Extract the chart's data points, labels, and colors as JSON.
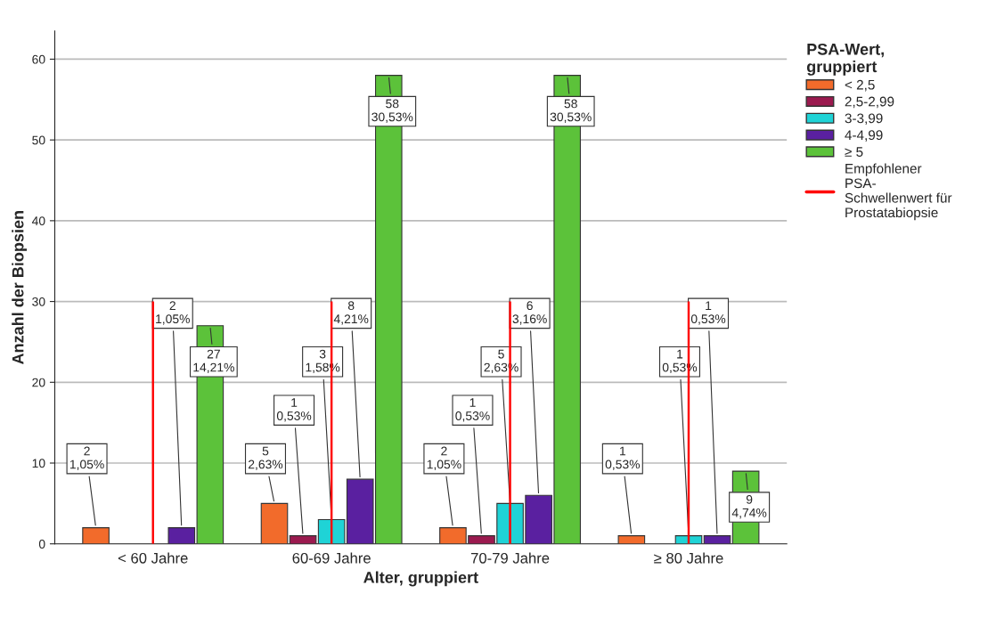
{
  "chart_data": {
    "type": "bar",
    "xlabel": "Alter, gruppiert",
    "ylabel": "Anzahl der Biopsien",
    "legend_title": "PSA-Wert,\ngruppiert",
    "categories": [
      "< 60 Jahre",
      "60-69 Jahre",
      "70-79 Jahre",
      "≥ 80 Jahre"
    ],
    "series": [
      {
        "name": "< 2,5",
        "color": "#f26b2b",
        "values": [
          2,
          5,
          2,
          1
        ],
        "value_labels": [
          "2\n1,05%",
          "5\n2,63%",
          "2\n1,05%",
          "1\n0,53%"
        ]
      },
      {
        "name": "2,5-2,99",
        "color": "#9b1a4f",
        "values": [
          null,
          1,
          1,
          null
        ],
        "value_labels": [
          null,
          "1\n0,53%",
          "1\n0,53%",
          null
        ]
      },
      {
        "name": "3-3,99",
        "color": "#1fd3d6",
        "values": [
          null,
          3,
          5,
          1
        ],
        "value_labels": [
          null,
          "3\n1,58%",
          "5\n2,63%",
          "1\n0,53%"
        ]
      },
      {
        "name": "4-4,99",
        "color": "#5a20a0",
        "values": [
          2,
          8,
          6,
          1
        ],
        "value_labels": [
          "2\n1,05%",
          "8\n4,21%",
          "6\n3,16%",
          "1\n0,53%"
        ]
      },
      {
        "name": "≥ 5",
        "color": "#5cc23a",
        "values": [
          27,
          58,
          58,
          9
        ],
        "value_labels": [
          "27\n14,21%",
          "58\n30,53%",
          "58\n30,53%",
          "9\n4,74%"
        ]
      },
      {
        "name": "Empfohlener\nPSA-\nSchwellenwert für\nProstatabiopsie",
        "type": "bar",
        "color": "#ff0000",
        "values": [
          30,
          30,
          30,
          30
        ]
      }
    ],
    "ylim": [
      0,
      63.5
    ],
    "yticks": [
      0,
      10,
      20,
      30,
      40,
      50,
      60
    ],
    "grid": "y",
    "legend": "right"
  }
}
